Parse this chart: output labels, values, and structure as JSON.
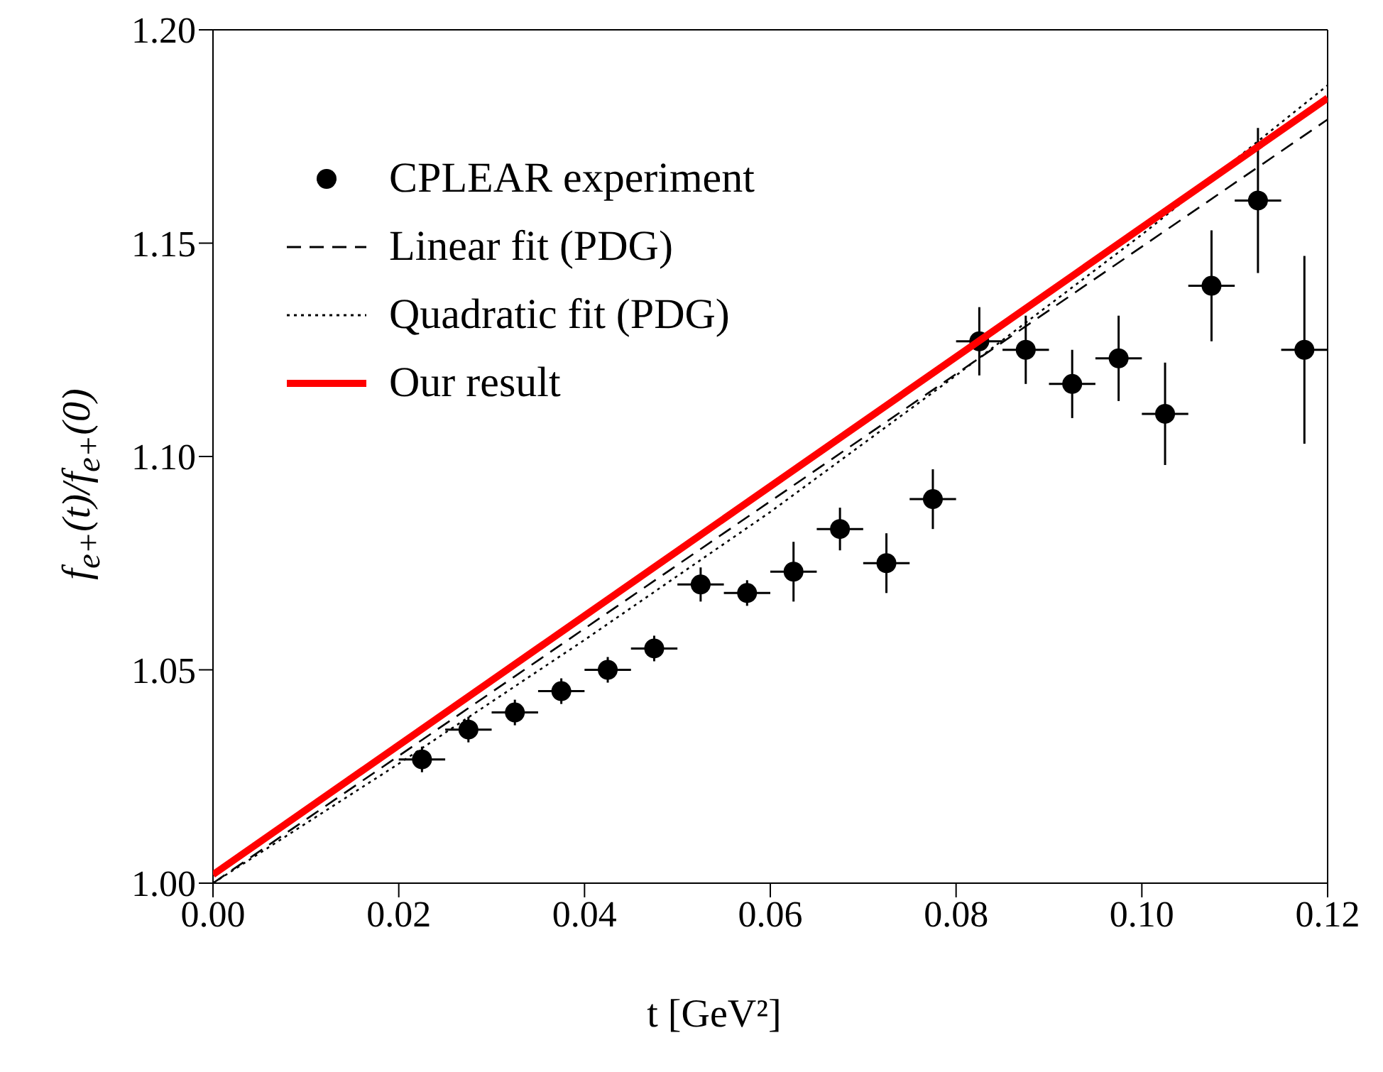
{
  "chart_data": {
    "type": "scatter",
    "xlabel": "t [GeV²]",
    "ylabel": "f$_{e+}$(t)/f$_{e+}$(0)",
    "xlim": [
      0,
      0.12
    ],
    "xticks": [
      {
        "value": 0,
        "label": "0.00"
      },
      0.02,
      0.04,
      0.06,
      0.08,
      {
        "value": 0.1,
        "label": "0.10"
      },
      0.12
    ],
    "ylim": [
      1,
      1.2
    ],
    "yticks": [
      {
        "value": 1,
        "label": "1.00"
      },
      1.05,
      {
        "value": 1.1,
        "label": "1.10"
      },
      1.15,
      {
        "value": 1.2,
        "label": "1.20"
      }
    ],
    "grid": false,
    "legend": "top left",
    "series": [
      {
        "name": "CPLEAR experiment",
        "color": "#000000",
        "marker": "circle",
        "x": [
          0.0225,
          0.0275,
          0.0325,
          0.0375,
          0.0425,
          0.0475,
          0.0525,
          0.0575,
          0.0625,
          0.0675,
          0.0725,
          0.0775,
          0.0825,
          0.0875,
          0.0925,
          0.0975,
          0.1025,
          0.1075,
          0.1125,
          0.1175
        ],
        "values": [
          1.029,
          1.036,
          1.04,
          1.045,
          1.05,
          1.055,
          1.07,
          1.068,
          1.073,
          1.083,
          1.075,
          1.09,
          1.127,
          1.125,
          1.117,
          1.123,
          1.11,
          1.14,
          1.16,
          1.125
        ],
        "errors": [
          0.003,
          0.003,
          0.003,
          0.003,
          0.003,
          0.003,
          0.004,
          0.003,
          0.007,
          0.005,
          0.007,
          0.007,
          0.008,
          0.008,
          0.008,
          0.01,
          0.012,
          0.013,
          0.017,
          0.022
        ],
        "xerrors": [
          0.0025,
          0.0025,
          0.0025,
          0.0025,
          0.0025,
          0.0025,
          0.0025,
          0.0025,
          0.0025,
          0.0025,
          0.0025,
          0.0025,
          0.0025,
          0.0025,
          0.0025,
          0.0025,
          0.0025,
          0.0025,
          0.0025,
          0.0025
        ]
      },
      {
        "name": "Linear fit (PDG)",
        "type": "line",
        "color": "#000000",
        "line_style": "dashed",
        "x": [
          0,
          0.12
        ],
        "values": [
          1.0,
          1.179
        ]
      },
      {
        "name": "Quadratic fit (PDG)",
        "type": "line",
        "color": "#000000",
        "line_style": "dotted",
        "x": [
          0,
          0.02,
          0.04,
          0.06,
          0.08,
          0.1,
          0.12
        ],
        "values": [
          1.0,
          1.028,
          1.057,
          1.087,
          1.119,
          1.152,
          1.187
        ]
      },
      {
        "name": "Our result",
        "type": "line",
        "color": "#ff0000",
        "line_style": "solid",
        "x": [
          0,
          0.12
        ],
        "values": [
          1.002,
          1.184
        ]
      }
    ]
  }
}
